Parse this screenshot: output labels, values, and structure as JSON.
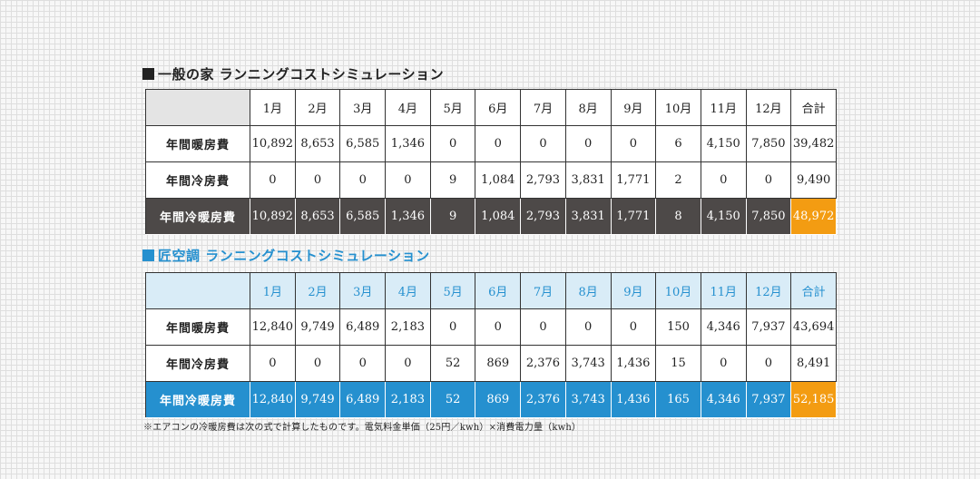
{
  "section1": {
    "title": "一般の家 ランニングコストシミュレーション"
  },
  "section2": {
    "title": "匠空調 ランニングコストシミュレーション"
  },
  "headers": [
    "1月",
    "2月",
    "3月",
    "4月",
    "5月",
    "6月",
    "7月",
    "8月",
    "9月",
    "10月",
    "11月",
    "12月",
    "合計"
  ],
  "colors": {
    "dark_row": "#4d4948",
    "blue": "#2590cf",
    "orange": "#f39c12",
    "blue_header": "#d9ecf7"
  },
  "table1": {
    "rows": [
      {
        "label": "年間暖房費",
        "values": [
          "10,892",
          "8,653",
          "6,585",
          "1,346",
          "0",
          "0",
          "0",
          "0",
          "0",
          "6",
          "4,150",
          "7,850",
          "39,482"
        ]
      },
      {
        "label": "年間冷房費",
        "values": [
          "0",
          "0",
          "0",
          "0",
          "9",
          "1,084",
          "2,793",
          "3,831",
          "1,771",
          "2",
          "0",
          "0",
          "9,490"
        ]
      },
      {
        "label": "年間冷暖房費",
        "values": [
          "10,892",
          "8,653",
          "6,585",
          "1,346",
          "9",
          "1,084",
          "2,793",
          "3,831",
          "1,771",
          "8",
          "4,150",
          "7,850",
          "48,972"
        ]
      }
    ]
  },
  "table2": {
    "rows": [
      {
        "label": "年間暖房費",
        "values": [
          "12,840",
          "9,749",
          "6,489",
          "2,183",
          "0",
          "0",
          "0",
          "0",
          "0",
          "150",
          "4,346",
          "7,937",
          "43,694"
        ]
      },
      {
        "label": "年間冷房費",
        "values": [
          "0",
          "0",
          "0",
          "0",
          "52",
          "869",
          "2,376",
          "3,743",
          "1,436",
          "15",
          "0",
          "0",
          "8,491"
        ]
      },
      {
        "label": "年間冷暖房費",
        "values": [
          "12,840",
          "9,749",
          "6,489",
          "2,183",
          "52",
          "869",
          "2,376",
          "3,743",
          "1,436",
          "165",
          "4,346",
          "7,937",
          "52,185"
        ]
      }
    ]
  },
  "note": "※エアコンの冷暖房費は次の式で計算したものです。電気料金単価（25円／kwh）×消費電力量（kwh）"
}
